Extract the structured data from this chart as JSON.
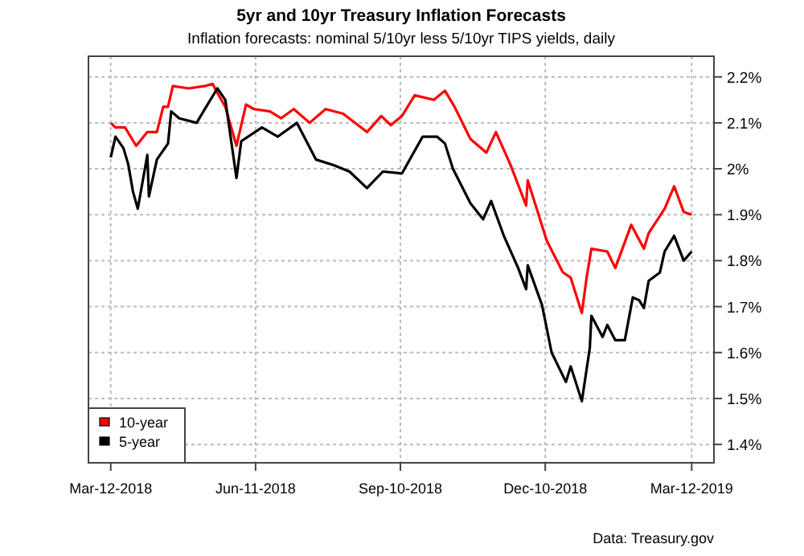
{
  "chart_data": {
    "type": "line",
    "title": "5yr and 10yr Treasury Inflation Forecasts",
    "subtitle": "Inflation forecasts: nominal 5/10yr less 5/10yr TIPS yields, daily",
    "annotations": [
      "Data: Treasury.gov"
    ],
    "xlim": [
      "2018-02-26",
      "2019-03-26"
    ],
    "xticks": [
      {
        "value": "2018-03-12",
        "label": "Mar-12-2018"
      },
      {
        "value": "2018-06-11",
        "label": "Jun-11-2018"
      },
      {
        "value": "2018-09-10",
        "label": "Sep-10-2018"
      },
      {
        "value": "2018-12-10",
        "label": "Dec-10-2018"
      },
      {
        "value": "2019-03-12",
        "label": "Mar-12-2019"
      }
    ],
    "ylim": [
      1.36,
      2.245
    ],
    "yticks": [
      {
        "value": 1.4,
        "label": "1.4%"
      },
      {
        "value": 1.5,
        "label": "1.5%"
      },
      {
        "value": 1.6,
        "label": "1.6%"
      },
      {
        "value": 1.7,
        "label": "1.7%"
      },
      {
        "value": 1.8,
        "label": "1.8%"
      },
      {
        "value": 1.9,
        "label": "1.9%"
      },
      {
        "value": 2,
        "label": "2%"
      },
      {
        "value": 2.1,
        "label": "2.1%"
      },
      {
        "value": 2.2,
        "label": "2.2%"
      }
    ],
    "grid": true,
    "legend": "bottom left",
    "line_style": "solid",
    "series": [
      {
        "name": "10-year",
        "color": "#ff0000",
        "x": [
          "2018-03-12",
          "2018-03-15",
          "2018-03-21",
          "2018-03-28",
          "2018-04-04",
          "2018-04-10",
          "2018-04-14",
          "2018-04-17",
          "2018-04-20",
          "2018-04-30",
          "2018-05-10",
          "2018-05-15",
          "2018-05-18",
          "2018-05-23",
          "2018-05-30",
          "2018-06-05",
          "2018-06-10",
          "2018-06-20",
          "2018-06-27",
          "2018-07-05",
          "2018-07-15",
          "2018-07-25",
          "2018-08-05",
          "2018-08-20",
          "2018-08-29",
          "2018-09-04",
          "2018-09-11",
          "2018-09-19",
          "2018-10-01",
          "2018-10-08",
          "2018-10-14",
          "2018-10-24",
          "2018-11-03",
          "2018-11-09",
          "2018-11-18",
          "2018-11-28",
          "2018-11-29",
          "2018-12-11",
          "2018-12-21",
          "2018-12-26",
          "2019-01-02",
          "2019-01-05",
          "2019-01-08",
          "2019-01-18",
          "2019-01-23",
          "2019-02-02",
          "2019-02-10",
          "2019-02-13",
          "2019-02-23",
          "2019-03-01",
          "2019-03-07",
          "2019-03-12"
        ],
        "values": [
          2.1,
          2.09,
          2.09,
          2.05,
          2.08,
          2.08,
          2.135,
          2.135,
          2.18,
          2.175,
          2.18,
          2.185,
          2.165,
          2.135,
          2.05,
          2.14,
          2.13,
          2.125,
          2.11,
          2.13,
          2.1,
          2.13,
          2.12,
          2.08,
          2.115,
          2.095,
          2.115,
          2.16,
          2.15,
          2.17,
          2.135,
          2.065,
          2.035,
          2.08,
          2.01,
          1.92,
          1.975,
          1.843,
          1.775,
          1.763,
          1.686,
          1.763,
          1.826,
          1.82,
          1.784,
          1.878,
          1.826,
          1.86,
          1.913,
          1.962,
          1.906,
          1.9
        ]
      },
      {
        "name": "5-year",
        "color": "#000000",
        "x": [
          "2018-03-12",
          "2018-03-15",
          "2018-03-20",
          "2018-03-23",
          "2018-03-26",
          "2018-03-29",
          "2018-04-04",
          "2018-04-05",
          "2018-04-10",
          "2018-04-17",
          "2018-04-19",
          "2018-04-24",
          "2018-05-05",
          "2018-05-11",
          "2018-05-18",
          "2018-05-23",
          "2018-05-30",
          "2018-06-02",
          "2018-06-15",
          "2018-06-25",
          "2018-07-07",
          "2018-07-19",
          "2018-07-30",
          "2018-08-09",
          "2018-08-20",
          "2018-08-30",
          "2018-09-11",
          "2018-09-24",
          "2018-10-03",
          "2018-10-08",
          "2018-10-13",
          "2018-10-24",
          "2018-11-01",
          "2018-11-06",
          "2018-11-14",
          "2018-11-23",
          "2018-11-28",
          "2018-11-29",
          "2018-12-08",
          "2018-12-14",
          "2018-12-23",
          "2018-12-26",
          "2019-01-02",
          "2019-01-07",
          "2019-01-08",
          "2019-01-15",
          "2019-01-18",
          "2019-01-23",
          "2019-01-29",
          "2019-02-03",
          "2019-02-07",
          "2019-02-10",
          "2019-02-13",
          "2019-02-20",
          "2019-02-23",
          "2019-03-01",
          "2019-03-07",
          "2019-03-12"
        ],
        "values": [
          2.025,
          2.07,
          2.045,
          2.01,
          1.95,
          1.913,
          2.03,
          1.94,
          2.02,
          2.055,
          2.125,
          2.11,
          2.1,
          2.135,
          2.175,
          2.15,
          1.98,
          2.06,
          2.09,
          2.07,
          2.1,
          2.02,
          2.008,
          1.994,
          1.958,
          1.994,
          1.99,
          2.07,
          2.07,
          2.055,
          2.0,
          1.925,
          1.89,
          1.93,
          1.854,
          1.784,
          1.738,
          1.79,
          1.703,
          1.6,
          1.536,
          1.57,
          1.494,
          1.61,
          1.68,
          1.634,
          1.66,
          1.627,
          1.627,
          1.72,
          1.714,
          1.697,
          1.756,
          1.774,
          1.82,
          1.854,
          1.8,
          1.82
        ]
      }
    ]
  }
}
